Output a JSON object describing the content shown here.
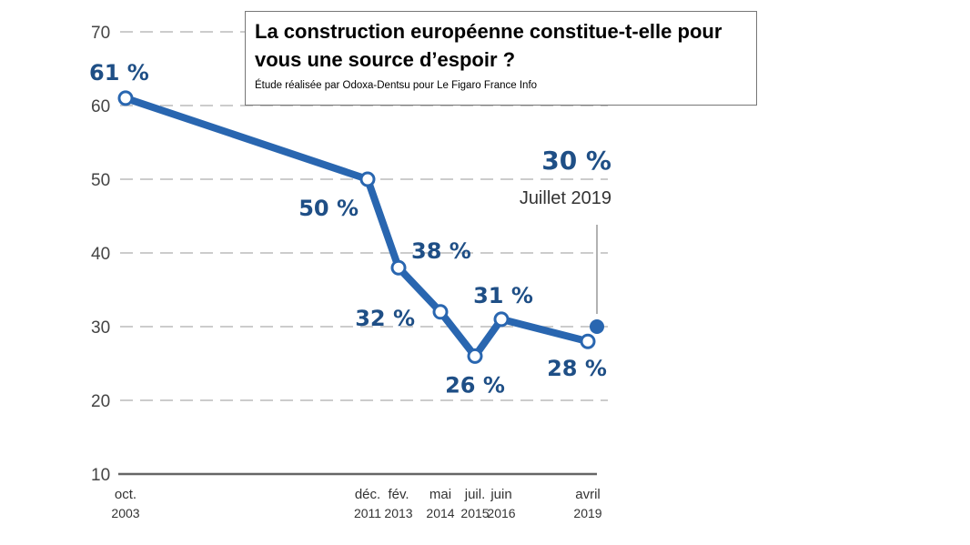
{
  "title_box": {
    "title": "La construction européenne constitue-t-elle pour vous une source d’espoir ?",
    "source": "Étude réalisée par Odoxa-Dentsu pour Le Figaro France Info"
  },
  "chart_data": {
    "type": "line",
    "title": "La construction européenne constitue-t-elle pour vous une source d’espoir ?",
    "xlabel": "",
    "ylabel": "",
    "ylim": [
      10,
      70
    ],
    "yticks": [
      10,
      20,
      30,
      40,
      50,
      60,
      70
    ],
    "grid": "horizontal dashed",
    "colors": {
      "line": "#2966b0",
      "label": "#1f4f86",
      "axis": "#555555"
    },
    "x_labels": [
      {
        "line1": "oct.",
        "line2": "2003"
      },
      {
        "line1": "déc.",
        "line2": "2011"
      },
      {
        "line1": "fév.",
        "line2": "2013"
      },
      {
        "line1": "mai",
        "line2": "2014"
      },
      {
        "line1": "juil.",
        "line2": "2015"
      },
      {
        "line1": "juin",
        "line2": "2016"
      },
      {
        "line1": "avril",
        "line2": "2019"
      }
    ],
    "series": [
      {
        "values": [
          61,
          50,
          38,
          32,
          26,
          31,
          28
        ],
        "labels": [
          "61 %",
          "50 %",
          "38 %",
          "32 %",
          "26 %",
          "31 %",
          "28 %"
        ]
      }
    ],
    "highlight": {
      "date": "Juillet 2019",
      "value": 30,
      "label": "30 %"
    }
  }
}
